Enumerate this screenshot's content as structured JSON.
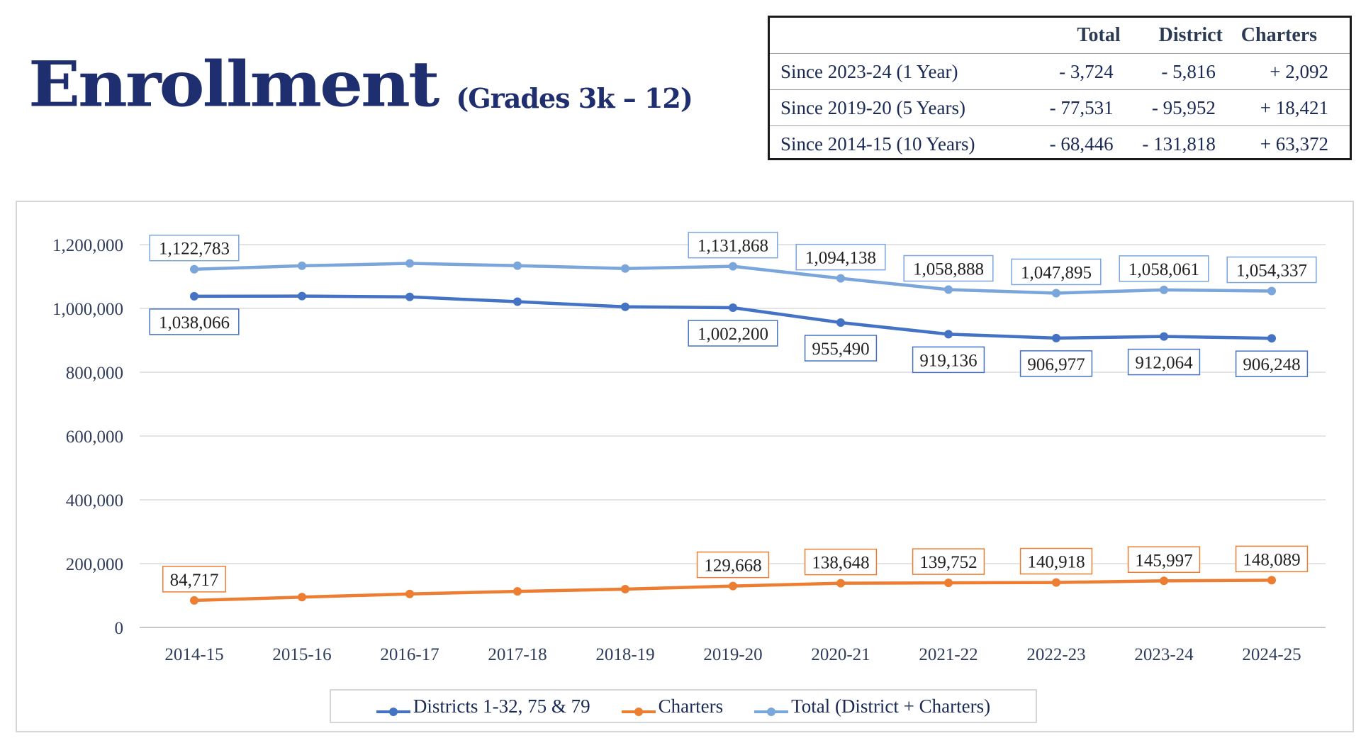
{
  "header": {
    "title": "Enrollment",
    "subtitle": "(Grades 3k – 12)"
  },
  "summary_table": {
    "headers": [
      "",
      "Total",
      "District",
      "Charters"
    ],
    "rows": [
      [
        "Since 2023-24 (1 Year)",
        "- 3,724",
        "- 5,816",
        "+ 2,092"
      ],
      [
        "Since 2019-20 (5 Years)",
        "- 77,531",
        "- 95,952",
        "+ 18,421"
      ],
      [
        "Since 2014-15 (10 Years)",
        "- 68,446",
        "- 131,818",
        "+ 63,372"
      ]
    ]
  },
  "chart_data": {
    "type": "line",
    "title": "",
    "xlabel": "",
    "ylabel": "",
    "ylim": [
      0,
      1200000
    ],
    "yticks": [
      0,
      200000,
      400000,
      600000,
      800000,
      1000000,
      1200000
    ],
    "grid": true,
    "legend_position": "bottom",
    "categories": [
      "2014-15",
      "2015-16",
      "2016-17",
      "2017-18",
      "2018-19",
      "2019-20",
      "2020-21",
      "2021-22",
      "2022-23",
      "2023-24",
      "2024-25"
    ],
    "series": [
      {
        "name": "Districts 1-32, 75 & 79",
        "color": "#4472c4",
        "values": [
          1038066,
          1038500,
          1036000,
          1021000,
          1005000,
          1002200,
          955490,
          919136,
          906977,
          912064,
          906248
        ],
        "labels": [
          "1,038,066",
          null,
          null,
          null,
          null,
          "1,002,200",
          "955,490",
          "919,136",
          "906,977",
          "912,064",
          "906,248"
        ],
        "label_position": "below"
      },
      {
        "name": "Charters",
        "color": "#ed7d31",
        "values": [
          84717,
          95000,
          105000,
          113000,
          120000,
          129668,
          138648,
          139752,
          140918,
          145997,
          148089
        ],
        "labels": [
          "84,717",
          null,
          null,
          null,
          null,
          "129,668",
          "138,648",
          "139,752",
          "140,918",
          "145,997",
          "148,089"
        ],
        "label_position": "above"
      },
      {
        "name": "Total (District + Charters)",
        "color": "#7aa6dc",
        "values": [
          1122783,
          1133500,
          1141000,
          1134000,
          1125000,
          1131868,
          1094138,
          1058888,
          1047895,
          1058061,
          1054337
        ],
        "labels": [
          "1,122,783",
          null,
          null,
          null,
          null,
          "1,131,868",
          "1,094,138",
          "1,058,888",
          "1,047,895",
          "1,058,061",
          "1,054,337"
        ],
        "label_position": "above"
      }
    ]
  }
}
